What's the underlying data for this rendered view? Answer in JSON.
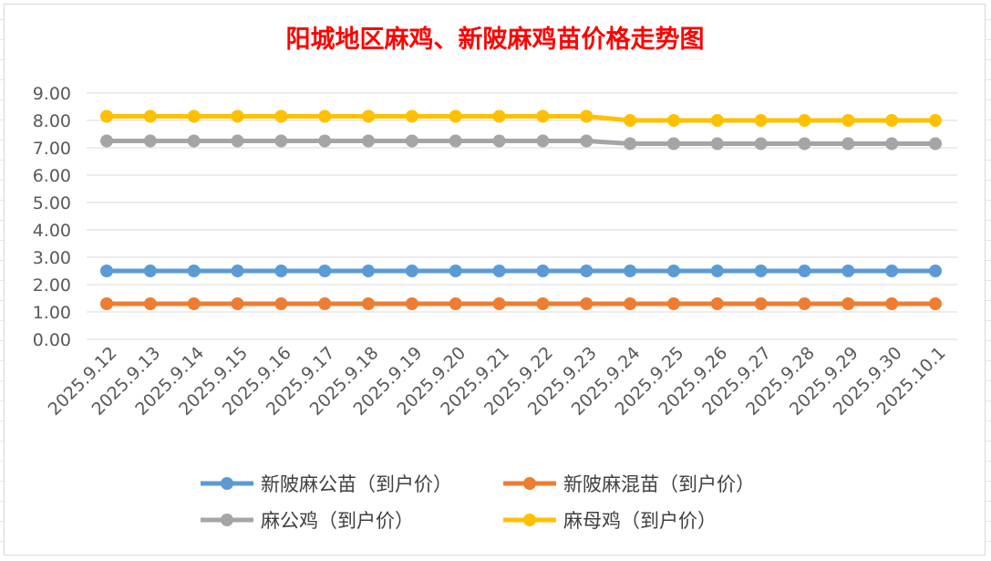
{
  "chart_data": {
    "type": "line",
    "title": "阳城地区麻鸡、新陂麻鸡苗价格走势图",
    "categories": [
      "2025.9.12",
      "2025.9.13",
      "2025.9.14",
      "2025.9.15",
      "2025.9.16",
      "2025.9.17",
      "2025.9.18",
      "2025.9.19",
      "2025.9.20",
      "2025.9.21",
      "2025.9.22",
      "2025.9.23",
      "2025.9.24",
      "2025.9.25",
      "2025.9.26",
      "2025.9.27",
      "2025.9.28",
      "2025.9.29",
      "2025.9.30",
      "2025.10.1"
    ],
    "yticks": [
      "0.00",
      "1.00",
      "2.00",
      "3.00",
      "4.00",
      "5.00",
      "6.00",
      "7.00",
      "8.00",
      "9.00"
    ],
    "ylim": [
      0,
      9
    ],
    "grid": true,
    "legend_position": "bottom",
    "series": [
      {
        "name": "新陂麻公苗（到户价）",
        "color": "#5b9bd5",
        "values": [
          2.5,
          2.5,
          2.5,
          2.5,
          2.5,
          2.5,
          2.5,
          2.5,
          2.5,
          2.5,
          2.5,
          2.5,
          2.5,
          2.5,
          2.5,
          2.5,
          2.5,
          2.5,
          2.5,
          2.5
        ]
      },
      {
        "name": "新陂麻混苗（到户价）",
        "color": "#ed7d31",
        "values": [
          1.3,
          1.3,
          1.3,
          1.3,
          1.3,
          1.3,
          1.3,
          1.3,
          1.3,
          1.3,
          1.3,
          1.3,
          1.3,
          1.3,
          1.3,
          1.3,
          1.3,
          1.3,
          1.3,
          1.3
        ]
      },
      {
        "name": "麻公鸡（到户价）",
        "color": "#a5a5a5",
        "values": [
          7.25,
          7.25,
          7.25,
          7.25,
          7.25,
          7.25,
          7.25,
          7.25,
          7.25,
          7.25,
          7.25,
          7.25,
          7.15,
          7.15,
          7.15,
          7.15,
          7.15,
          7.15,
          7.15,
          7.15
        ]
      },
      {
        "name": "麻母鸡（到户价）",
        "color": "#ffc000",
        "values": [
          8.15,
          8.15,
          8.15,
          8.15,
          8.15,
          8.15,
          8.15,
          8.15,
          8.15,
          8.15,
          8.15,
          8.15,
          8.0,
          8.0,
          8.0,
          8.0,
          8.0,
          8.0,
          8.0,
          8.0
        ]
      }
    ]
  }
}
